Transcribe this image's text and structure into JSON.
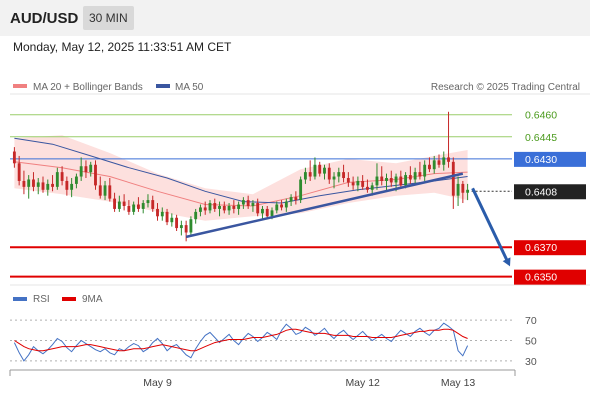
{
  "header": {
    "symbol": "AUD/USD",
    "interval": "30 MIN",
    "datetime": "Monday, May 12, 2025 11:33:51 AM CET"
  },
  "legend": {
    "bb_label": "MA 20 + Bollinger Bands",
    "ma50_label": "MA 50",
    "credit": "Research © 2025 Trading Central",
    "rsi_label": "RSI",
    "rsi_ma_label": "9MA"
  },
  "colors": {
    "bull": "#2e8b2e",
    "bear": "#c62828",
    "ma20": "#f08080",
    "band_fill": "#fde0de",
    "ma50": "#3a56a0",
    "support": "#e00000",
    "pivot": "#3a6fd8",
    "resistance": "#9acd6a",
    "rsi": "#4472c4",
    "rsi_ma": "#e00000"
  },
  "chart_data": [
    {
      "type": "candlestick",
      "symbol": "AUD/USD",
      "timeframe": "30 MIN",
      "ylim": [
        0.6345,
        0.647
      ],
      "x_ticks": [
        "May 9",
        "May 12",
        "May 13"
      ],
      "levels": [
        {
          "value": 0.646,
          "label": "0.6460",
          "kind": "resistance"
        },
        {
          "value": 0.6445,
          "label": "0.6445",
          "kind": "resistance"
        },
        {
          "value": 0.643,
          "label": "0.6430",
          "kind": "pivot"
        },
        {
          "value": 0.6408,
          "label": "0.6408",
          "kind": "last"
        },
        {
          "value": 0.637,
          "label": "0.6370",
          "kind": "support"
        },
        {
          "value": 0.635,
          "label": "0.6350",
          "kind": "support"
        }
      ],
      "candles": [
        [
          0.6435,
          0.6438,
          0.6424,
          0.6427
        ],
        [
          0.6427,
          0.6432,
          0.6412,
          0.6415
        ],
        [
          0.6415,
          0.6422,
          0.6406,
          0.6411
        ],
        [
          0.6411,
          0.6419,
          0.6403,
          0.6416
        ],
        [
          0.6416,
          0.6421,
          0.6408,
          0.6411
        ],
        [
          0.6411,
          0.6417,
          0.6406,
          0.6414
        ],
        [
          0.6414,
          0.6418,
          0.6407,
          0.6409
        ],
        [
          0.6409,
          0.6416,
          0.6405,
          0.6413
        ],
        [
          0.6413,
          0.6419,
          0.6408,
          0.6411
        ],
        [
          0.6411,
          0.6424,
          0.6409,
          0.6421
        ],
        [
          0.6421,
          0.6425,
          0.6412,
          0.6415
        ],
        [
          0.6415,
          0.6418,
          0.6405,
          0.6409
        ],
        [
          0.6409,
          0.6417,
          0.6404,
          0.6413
        ],
        [
          0.6413,
          0.642,
          0.641,
          0.6418
        ],
        [
          0.6418,
          0.6431,
          0.6415,
          0.6425
        ],
        [
          0.6425,
          0.6429,
          0.6417,
          0.6421
        ],
        [
          0.6421,
          0.6428,
          0.6418,
          0.6426
        ],
        [
          0.6426,
          0.6429,
          0.6409,
          0.6412
        ],
        [
          0.6412,
          0.6418,
          0.6403,
          0.6405
        ],
        [
          0.6405,
          0.6415,
          0.6402,
          0.6412
        ],
        [
          0.6412,
          0.6417,
          0.6401,
          0.6403
        ],
        [
          0.6403,
          0.6407,
          0.6394,
          0.6396
        ],
        [
          0.6396,
          0.6405,
          0.6394,
          0.6401
        ],
        [
          0.6401,
          0.6406,
          0.6395,
          0.6398
        ],
        [
          0.6398,
          0.6402,
          0.6392,
          0.6394
        ],
        [
          0.6394,
          0.6401,
          0.6392,
          0.6399
        ],
        [
          0.6399,
          0.6404,
          0.6394,
          0.6396
        ],
        [
          0.6396,
          0.6402,
          0.6393,
          0.64
        ],
        [
          0.64,
          0.6406,
          0.6397,
          0.6402
        ],
        [
          0.6402,
          0.6405,
          0.6394,
          0.6396
        ],
        [
          0.6396,
          0.64,
          0.6388,
          0.6391
        ],
        [
          0.6391,
          0.6397,
          0.6388,
          0.6394
        ],
        [
          0.6394,
          0.6396,
          0.6385,
          0.6387
        ],
        [
          0.6387,
          0.6393,
          0.6384,
          0.639
        ],
        [
          0.639,
          0.6392,
          0.6381,
          0.6383
        ],
        [
          0.6383,
          0.6388,
          0.6378,
          0.6385
        ],
        [
          0.6385,
          0.6388,
          0.6374,
          0.638
        ],
        [
          0.638,
          0.6391,
          0.6378,
          0.6389
        ],
        [
          0.6389,
          0.6396,
          0.6386,
          0.6394
        ],
        [
          0.6394,
          0.6399,
          0.6391,
          0.6397
        ],
        [
          0.6397,
          0.6401,
          0.6392,
          0.6395
        ],
        [
          0.6395,
          0.6402,
          0.6393,
          0.64
        ],
        [
          0.64,
          0.6403,
          0.6394,
          0.6396
        ],
        [
          0.6396,
          0.6401,
          0.6391,
          0.6398
        ],
        [
          0.6398,
          0.6401,
          0.6393,
          0.6395
        ],
        [
          0.6395,
          0.64,
          0.6392,
          0.6398
        ],
        [
          0.6398,
          0.6402,
          0.6393,
          0.6396
        ],
        [
          0.6396,
          0.6401,
          0.6392,
          0.6399
        ],
        [
          0.6399,
          0.6404,
          0.6396,
          0.6402
        ],
        [
          0.6402,
          0.6405,
          0.6396,
          0.6398
        ],
        [
          0.6398,
          0.6402,
          0.6394,
          0.64
        ],
        [
          0.64,
          0.6403,
          0.6391,
          0.6393
        ],
        [
          0.6393,
          0.6398,
          0.6389,
          0.6396
        ],
        [
          0.6396,
          0.6398,
          0.6389,
          0.6391
        ],
        [
          0.6391,
          0.6397,
          0.6389,
          0.6395
        ],
        [
          0.6395,
          0.6401,
          0.6393,
          0.6399
        ],
        [
          0.6399,
          0.6402,
          0.6395,
          0.6397
        ],
        [
          0.6397,
          0.6403,
          0.6394,
          0.6401
        ],
        [
          0.6401,
          0.6406,
          0.6398,
          0.6404
        ],
        [
          0.6404,
          0.6408,
          0.6399,
          0.6402
        ],
        [
          0.6402,
          0.6418,
          0.64,
          0.6416
        ],
        [
          0.6416,
          0.6424,
          0.6413,
          0.6421
        ],
        [
          0.6421,
          0.6429,
          0.6415,
          0.6418
        ],
        [
          0.6418,
          0.6431,
          0.6416,
          0.6426
        ],
        [
          0.6426,
          0.6428,
          0.6418,
          0.642
        ],
        [
          0.642,
          0.6426,
          0.6416,
          0.6424
        ],
        [
          0.6424,
          0.6427,
          0.6413,
          0.6416
        ],
        [
          0.6416,
          0.6421,
          0.641,
          0.6418
        ],
        [
          0.6418,
          0.6424,
          0.6414,
          0.6421
        ],
        [
          0.6421,
          0.6426,
          0.6414,
          0.6417
        ],
        [
          0.6417,
          0.6421,
          0.6411,
          0.6414
        ],
        [
          0.6414,
          0.6418,
          0.6409,
          0.6412
        ],
        [
          0.6412,
          0.6418,
          0.6408,
          0.6415
        ],
        [
          0.6415,
          0.6419,
          0.6409,
          0.6411
        ],
        [
          0.6411,
          0.6416,
          0.6407,
          0.6409
        ],
        [
          0.6409,
          0.6414,
          0.6405,
          0.6412
        ],
        [
          0.6412,
          0.6427,
          0.6409,
          0.6418
        ],
        [
          0.6418,
          0.6425,
          0.6412,
          0.6415
        ],
        [
          0.6415,
          0.642,
          0.6408,
          0.6417
        ],
        [
          0.6417,
          0.6422,
          0.6411,
          0.6414
        ],
        [
          0.6414,
          0.642,
          0.6408,
          0.6418
        ],
        [
          0.6418,
          0.6422,
          0.641,
          0.6412
        ],
        [
          0.6412,
          0.6421,
          0.641,
          0.6419
        ],
        [
          0.6419,
          0.6425,
          0.6413,
          0.6416
        ],
        [
          0.6416,
          0.6424,
          0.6412,
          0.6421
        ],
        [
          0.6421,
          0.6428,
          0.6416,
          0.6418
        ],
        [
          0.6418,
          0.6429,
          0.6415,
          0.6426
        ],
        [
          0.6426,
          0.6431,
          0.6421,
          0.6423
        ],
        [
          0.6423,
          0.6432,
          0.642,
          0.6429
        ],
        [
          0.6429,
          0.6433,
          0.6424,
          0.6426
        ],
        [
          0.6426,
          0.6435,
          0.6422,
          0.6431
        ],
        [
          0.6431,
          0.6462,
          0.6424,
          0.6428
        ],
        [
          0.6428,
          0.6431,
          0.6396,
          0.6405
        ],
        [
          0.6405,
          0.6418,
          0.6398,
          0.6413
        ],
        [
          0.6413,
          0.6415,
          0.64,
          0.6407
        ],
        [
          0.6407,
          0.6413,
          0.6402,
          0.6409
        ]
      ],
      "ma20": [
        [
          0,
          0.6428
        ],
        [
          10,
          0.6424
        ],
        [
          20,
          0.6418
        ],
        [
          30,
          0.6408
        ],
        [
          40,
          0.6399
        ],
        [
          50,
          0.6398
        ],
        [
          60,
          0.6405
        ],
        [
          70,
          0.6414
        ],
        [
          80,
          0.6416
        ],
        [
          88,
          0.642
        ],
        [
          95,
          0.6421
        ]
      ],
      "bollinger_upper": [
        [
          0,
          0.6444
        ],
        [
          10,
          0.6446
        ],
        [
          20,
          0.6434
        ],
        [
          30,
          0.642
        ],
        [
          40,
          0.641
        ],
        [
          50,
          0.6406
        ],
        [
          60,
          0.6423
        ],
        [
          70,
          0.643
        ],
        [
          80,
          0.6427
        ],
        [
          88,
          0.6432
        ],
        [
          95,
          0.6436
        ]
      ],
      "bollinger_lower": [
        [
          0,
          0.641
        ],
        [
          10,
          0.6406
        ],
        [
          20,
          0.6401
        ],
        [
          30,
          0.6394
        ],
        [
          40,
          0.6388
        ],
        [
          50,
          0.6391
        ],
        [
          60,
          0.6393
        ],
        [
          70,
          0.64
        ],
        [
          80,
          0.6405
        ],
        [
          88,
          0.6407
        ],
        [
          95,
          0.6402
        ]
      ],
      "ma50": [
        [
          0,
          0.6444
        ],
        [
          8,
          0.644
        ],
        [
          16,
          0.6432
        ],
        [
          24,
          0.6424
        ],
        [
          32,
          0.6417
        ],
        [
          40,
          0.6408
        ],
        [
          48,
          0.6401
        ],
        [
          56,
          0.64
        ],
        [
          64,
          0.6405
        ],
        [
          72,
          0.6409
        ],
        [
          80,
          0.6412
        ],
        [
          88,
          0.6415
        ],
        [
          95,
          0.6418
        ]
      ],
      "trendline": [
        [
          0.6377,
          0.642
        ]
      ],
      "forecast_arrow": [
        0.641,
        0.6357
      ]
    },
    {
      "type": "line",
      "title": "RSI",
      "series": [
        {
          "name": "RSI",
          "values": [
            48,
            38,
            30,
            36,
            44,
            40,
            37,
            41,
            46,
            52,
            49,
            43,
            39,
            45,
            50,
            47,
            44,
            41,
            39,
            42,
            38,
            36,
            42,
            40,
            44,
            47,
            45,
            39,
            42,
            48,
            52,
            47,
            40,
            44,
            46,
            41,
            36,
            33,
            42,
            49,
            55,
            58,
            53,
            48,
            52,
            56,
            50,
            46,
            52,
            57,
            54,
            49,
            53,
            58,
            55,
            51,
            60,
            66,
            62,
            56,
            58,
            63,
            60,
            55,
            58,
            62,
            56,
            52,
            57,
            60,
            55,
            51,
            55,
            59,
            54,
            50,
            53,
            56,
            52,
            49,
            55,
            60,
            57,
            54,
            59,
            62,
            58,
            55,
            60,
            62,
            67,
            64,
            60,
            40,
            35,
            45
          ]
        },
        {
          "name": "9MA",
          "values": [
            50,
            47,
            44,
            42,
            41,
            40,
            40,
            41,
            42,
            43,
            44,
            44,
            44,
            44,
            45,
            46,
            46,
            45,
            44,
            43,
            42,
            41,
            40,
            40,
            41,
            42,
            42,
            42,
            43,
            44,
            45,
            46,
            45,
            44,
            43,
            42,
            41,
            40,
            40,
            42,
            44,
            46,
            48,
            49,
            50,
            51,
            51,
            51,
            51,
            52,
            53,
            53,
            53,
            54,
            55,
            56,
            58,
            60,
            61,
            61,
            60,
            59,
            58,
            57,
            57,
            57,
            56,
            55,
            55,
            55,
            55,
            54,
            54,
            54,
            54,
            53,
            53,
            53,
            53,
            53,
            54,
            55,
            56,
            57,
            58,
            59,
            59,
            60,
            60,
            60,
            61,
            61,
            60,
            57,
            54,
            52
          ]
        }
      ],
      "ylim": [
        25,
        78
      ],
      "y_ticks": [
        70,
        50,
        30
      ]
    }
  ]
}
